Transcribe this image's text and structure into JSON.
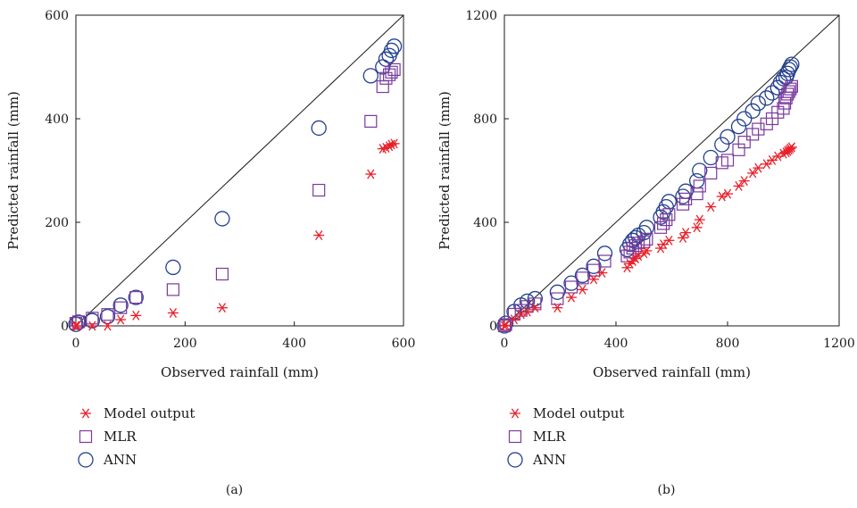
{
  "colors": {
    "model_output": "#e8202a",
    "mlr": "#7a3a9e",
    "ann": "#23408f",
    "axes": "#1a1a1a"
  },
  "chart_data": [
    {
      "type": "scatter",
      "caption": "(a)",
      "xlabel": "Observed rainfall (mm)",
      "ylabel": "Predicted rainfall (mm)",
      "xlim": [
        0,
        600
      ],
      "ylim": [
        0,
        600
      ],
      "xticks": [
        "0",
        "200",
        "400",
        "600"
      ],
      "yticks": [
        "0",
        "200",
        "400",
        "600"
      ],
      "reference_line": "1:1",
      "grid": false,
      "legend_position": "below",
      "series": [
        {
          "name": "Model output",
          "marker": "asterisk",
          "x": [
            0,
            2,
            30,
            58,
            82,
            110,
            178,
            268,
            445,
            540,
            562,
            568,
            574,
            578,
            583
          ],
          "y": [
            0,
            0,
            0,
            0,
            12,
            20,
            25,
            35,
            175,
            293,
            342,
            344,
            347,
            350,
            352
          ]
        },
        {
          "name": "MLR",
          "marker": "square",
          "x": [
            0,
            5,
            30,
            58,
            82,
            110,
            178,
            268,
            445,
            540,
            562,
            568,
            574,
            578,
            583
          ],
          "y": [
            5,
            8,
            15,
            22,
            35,
            55,
            70,
            100,
            262,
            395,
            462,
            478,
            485,
            490,
            495
          ]
        },
        {
          "name": "ANN",
          "marker": "circle",
          "x": [
            0,
            5,
            30,
            58,
            82,
            110,
            178,
            268,
            445,
            540,
            562,
            568,
            574,
            578,
            583
          ],
          "y": [
            3,
            7,
            10,
            18,
            40,
            55,
            113,
            207,
            382,
            483,
            500,
            515,
            522,
            532,
            540
          ]
        }
      ]
    },
    {
      "type": "scatter",
      "caption": "(b)",
      "xlabel": "Observed rainfall (mm)",
      "ylabel": "Predicted rainfall (mm)",
      "xlim": [
        0,
        1200
      ],
      "ylim": [
        0,
        1200
      ],
      "xticks": [
        "0",
        "400",
        "800",
        "1200"
      ],
      "yticks": [
        "0",
        "400",
        "800",
        "1200"
      ],
      "reference_line": "1:1",
      "grid": false,
      "legend_position": "below",
      "series": [
        {
          "name": "Model output",
          "marker": "asterisk",
          "x": [
            0,
            5,
            35,
            60,
            82,
            110,
            190,
            240,
            280,
            320,
            350,
            440,
            450,
            460,
            470,
            480,
            500,
            510,
            560,
            570,
            590,
            640,
            650,
            690,
            700,
            740,
            780,
            800,
            840,
            860,
            890,
            910,
            940,
            960,
            980,
            1000,
            1010,
            1015,
            1020,
            1025,
            1030
          ],
          "y": [
            0,
            2,
            25,
            45,
            55,
            70,
            70,
            110,
            140,
            180,
            205,
            225,
            240,
            250,
            260,
            270,
            280,
            290,
            300,
            315,
            330,
            340,
            360,
            380,
            410,
            460,
            500,
            510,
            540,
            560,
            590,
            610,
            625,
            640,
            655,
            665,
            670,
            675,
            680,
            685,
            690
          ]
        },
        {
          "name": "MLR",
          "marker": "square",
          "x": [
            0,
            5,
            35,
            60,
            82,
            110,
            190,
            240,
            280,
            320,
            360,
            440,
            450,
            460,
            470,
            480,
            500,
            510,
            560,
            570,
            580,
            590,
            640,
            650,
            690,
            700,
            740,
            780,
            800,
            840,
            860,
            890,
            910,
            940,
            960,
            980,
            1000,
            1005,
            1010,
            1015,
            1020,
            1025,
            1030
          ],
          "y": [
            0,
            5,
            45,
            60,
            75,
            85,
            105,
            150,
            185,
            215,
            250,
            270,
            285,
            300,
            310,
            320,
            325,
            335,
            380,
            395,
            410,
            430,
            470,
            490,
            510,
            540,
            590,
            630,
            640,
            680,
            710,
            740,
            760,
            780,
            800,
            825,
            840,
            860,
            880,
            895,
            905,
            915,
            925
          ]
        },
        {
          "name": "ANN",
          "marker": "circle",
          "x": [
            0,
            5,
            35,
            60,
            82,
            110,
            190,
            240,
            280,
            320,
            360,
            440,
            450,
            460,
            470,
            480,
            500,
            510,
            560,
            570,
            580,
            590,
            640,
            650,
            690,
            700,
            740,
            780,
            800,
            840,
            860,
            890,
            910,
            940,
            960,
            980,
            990,
            1000,
            1010,
            1015,
            1020,
            1025,
            1030
          ],
          "y": [
            0,
            10,
            55,
            80,
            95,
            105,
            130,
            165,
            195,
            230,
            280,
            295,
            315,
            330,
            340,
            350,
            360,
            380,
            420,
            440,
            460,
            480,
            500,
            520,
            560,
            600,
            650,
            700,
            730,
            770,
            800,
            830,
            860,
            880,
            900,
            920,
            940,
            955,
            960,
            975,
            990,
            1000,
            1010
          ]
        }
      ]
    }
  ]
}
